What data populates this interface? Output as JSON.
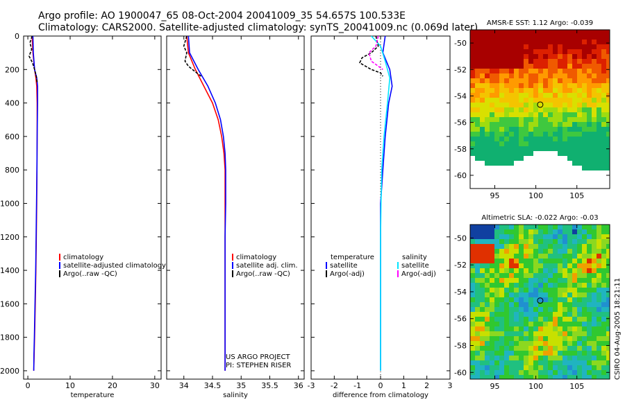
{
  "header": {
    "line1": "Argo profile: AO 1900047_65 08-Oct-2004 20041009_35 54.657S 100.533E",
    "line2": "Climatology: CARS2000. Satellite-adjusted climatology: synTS_20041009.nc (0.069d later)"
  },
  "side_text": "CSIRO 04-Aug-2005 18:21:11",
  "colors": {
    "climatology": "#ff0000",
    "satellite": "#0000ff",
    "argo": "#000000",
    "salinity": "#00e5ff",
    "salinity_argo": "#ff00ff"
  },
  "chart_data": [
    {
      "type": "line",
      "name": "temperature-profile",
      "xlabel": "temperature",
      "ylabel": "",
      "xlim": [
        -1,
        31.5
      ],
      "ylim": [
        2050,
        0
      ],
      "xticks": [
        "0",
        "10",
        "20",
        "30"
      ],
      "yticks": [
        "0",
        "200",
        "400",
        "600",
        "800",
        "1000",
        "1200",
        "1400",
        "1600",
        "1800",
        "2000"
      ],
      "legend": [
        "climatology",
        "satellite-adjusted climatology",
        "Argo(..raw -QC)"
      ],
      "series": [
        {
          "name": "climatology",
          "color": "#ff0000",
          "x": [
            1.0,
            1.2,
            1.6,
            1.9,
            2.1,
            2.2,
            2.2,
            2.15,
            2.1,
            2.0,
            1.9,
            1.75,
            1.6,
            1.5,
            1.4
          ],
          "y": [
            0,
            100,
            200,
            250,
            300,
            400,
            600,
            800,
            1000,
            1200,
            1400,
            1600,
            1800,
            1900,
            2000
          ]
        },
        {
          "name": "satellite-adjusted climatology",
          "color": "#0000ff",
          "x": [
            1.2,
            1.3,
            1.6,
            2.1,
            2.3,
            2.3,
            2.2,
            2.15,
            2.05,
            1.95,
            1.85,
            1.7,
            1.55,
            1.45,
            1.4
          ],
          "y": [
            0,
            100,
            200,
            250,
            300,
            400,
            600,
            800,
            1000,
            1200,
            1400,
            1600,
            1800,
            1900,
            2000
          ]
        },
        {
          "name": "Argo(..raw -QC)",
          "color": "#000000",
          "x": [
            1.0,
            0.5,
            0.9,
            0.3,
            1.1,
            1.6,
            2.0,
            2.2
          ],
          "y": [
            0,
            40,
            80,
            120,
            160,
            200,
            240,
            280
          ]
        }
      ]
    },
    {
      "type": "line",
      "name": "salinity-profile",
      "xlabel": "salinity",
      "ylabel": "",
      "xlim": [
        33.7,
        36.1
      ],
      "ylim": [
        2050,
        0
      ],
      "xticks": [
        "34",
        "34.5",
        "35",
        "35.5",
        "36"
      ],
      "legend": [
        "climatology",
        "satellite adj. clim.",
        "Argo(..raw -QC)"
      ],
      "series": [
        {
          "name": "climatology",
          "color": "#ff0000",
          "x": [
            34.05,
            34.08,
            34.2,
            34.35,
            34.5,
            34.6,
            34.66,
            34.7,
            34.72,
            34.72,
            34.72,
            34.72,
            34.72,
            34.72
          ],
          "y": [
            0,
            100,
            200,
            300,
            400,
            500,
            600,
            700,
            800,
            1000,
            1200,
            1600,
            1800,
            2000
          ]
        },
        {
          "name": "satellite adj. clim.",
          "color": "#0000ff",
          "x": [
            34.08,
            34.1,
            34.25,
            34.42,
            34.55,
            34.64,
            34.69,
            34.72,
            34.73,
            34.73,
            34.72,
            34.72,
            34.72,
            34.72
          ],
          "y": [
            0,
            100,
            200,
            300,
            400,
            500,
            600,
            700,
            800,
            1000,
            1200,
            1600,
            1800,
            2000
          ]
        },
        {
          "name": "Argo(..raw -QC)",
          "color": "#000000",
          "x": [
            34.05,
            34.0,
            34.05,
            34.02,
            34.08,
            34.15,
            34.3
          ],
          "y": [
            0,
            60,
            100,
            150,
            180,
            200,
            240
          ]
        }
      ]
    },
    {
      "type": "line",
      "name": "difference-from-climatology",
      "xlabel": "difference from climatology",
      "ylabel": "",
      "xlim": [
        -3,
        3
      ],
      "ylim": [
        2050,
        0
      ],
      "xticks": [
        "-3",
        "-2",
        "-1",
        "0",
        "1",
        "2",
        "3"
      ],
      "legend": [
        "temperature",
        "satellite",
        "Argo(-adj)",
        "salinity",
        "satellite",
        "Argo(-adj)"
      ],
      "series": [
        {
          "name": "temperature satellite",
          "color": "#0000ff",
          "x": [
            0.2,
            0.1,
            0.4,
            0.5,
            0.35,
            0.2,
            0.1,
            0.05,
            0.0,
            0.0,
            0.0,
            0.0,
            0.0
          ],
          "y": [
            0,
            100,
            200,
            300,
            400,
            600,
            800,
            900,
            1000,
            1200,
            1600,
            1800,
            2000
          ]
        },
        {
          "name": "salinity satellite",
          "color": "#00e5ff",
          "x": [
            -0.4,
            0.0,
            0.2,
            0.4,
            0.3,
            0.15,
            0.05,
            0.02,
            0.0,
            0.0,
            0.0
          ],
          "y": [
            0,
            60,
            150,
            250,
            400,
            600,
            800,
            1000,
            1200,
            1600,
            2000
          ]
        },
        {
          "name": "temperature Argo(-adj)",
          "color": "#000000",
          "x": [
            -0.2,
            -0.1,
            -0.4,
            -0.8,
            -0.9,
            -0.4,
            0.0,
            0.1
          ],
          "y": [
            0,
            60,
            100,
            130,
            160,
            200,
            220,
            240
          ]
        },
        {
          "name": "salinity Argo(-adj)",
          "color": "#ff00ff",
          "x": [
            -0.1,
            -0.2,
            -0.5,
            -0.4,
            -0.1,
            0.1
          ],
          "y": [
            0,
            60,
            100,
            150,
            180,
            200
          ]
        }
      ]
    },
    {
      "type": "heatmap",
      "name": "amsre-sst-map",
      "title": "AMSR-E SST: 1.12 Argo: -0.039",
      "xlim": [
        92,
        109
      ],
      "ylim": [
        -61,
        -49
      ],
      "xticks": [
        "95",
        "100",
        "105"
      ],
      "yticks": [
        "-50",
        "-52",
        "-54",
        "-56",
        "-58",
        "-60"
      ],
      "marker": {
        "lon": 100.533,
        "lat": -54.657
      }
    },
    {
      "type": "heatmap",
      "name": "altimetric-sla-map",
      "title": "Altimetric SLA: -0.022 Argo: -0.03",
      "xlim": [
        92,
        109
      ],
      "ylim": [
        -60.5,
        -49
      ],
      "xticks": [
        "95",
        "100",
        "105"
      ],
      "yticks": [
        "-50",
        "-52",
        "-54",
        "-56",
        "-58",
        "-60"
      ],
      "marker": {
        "lon": 100.533,
        "lat": -54.657
      }
    }
  ],
  "annotations": {
    "project": "US ARGO PROJECT",
    "pi": "PI: STEPHEN RISER"
  }
}
